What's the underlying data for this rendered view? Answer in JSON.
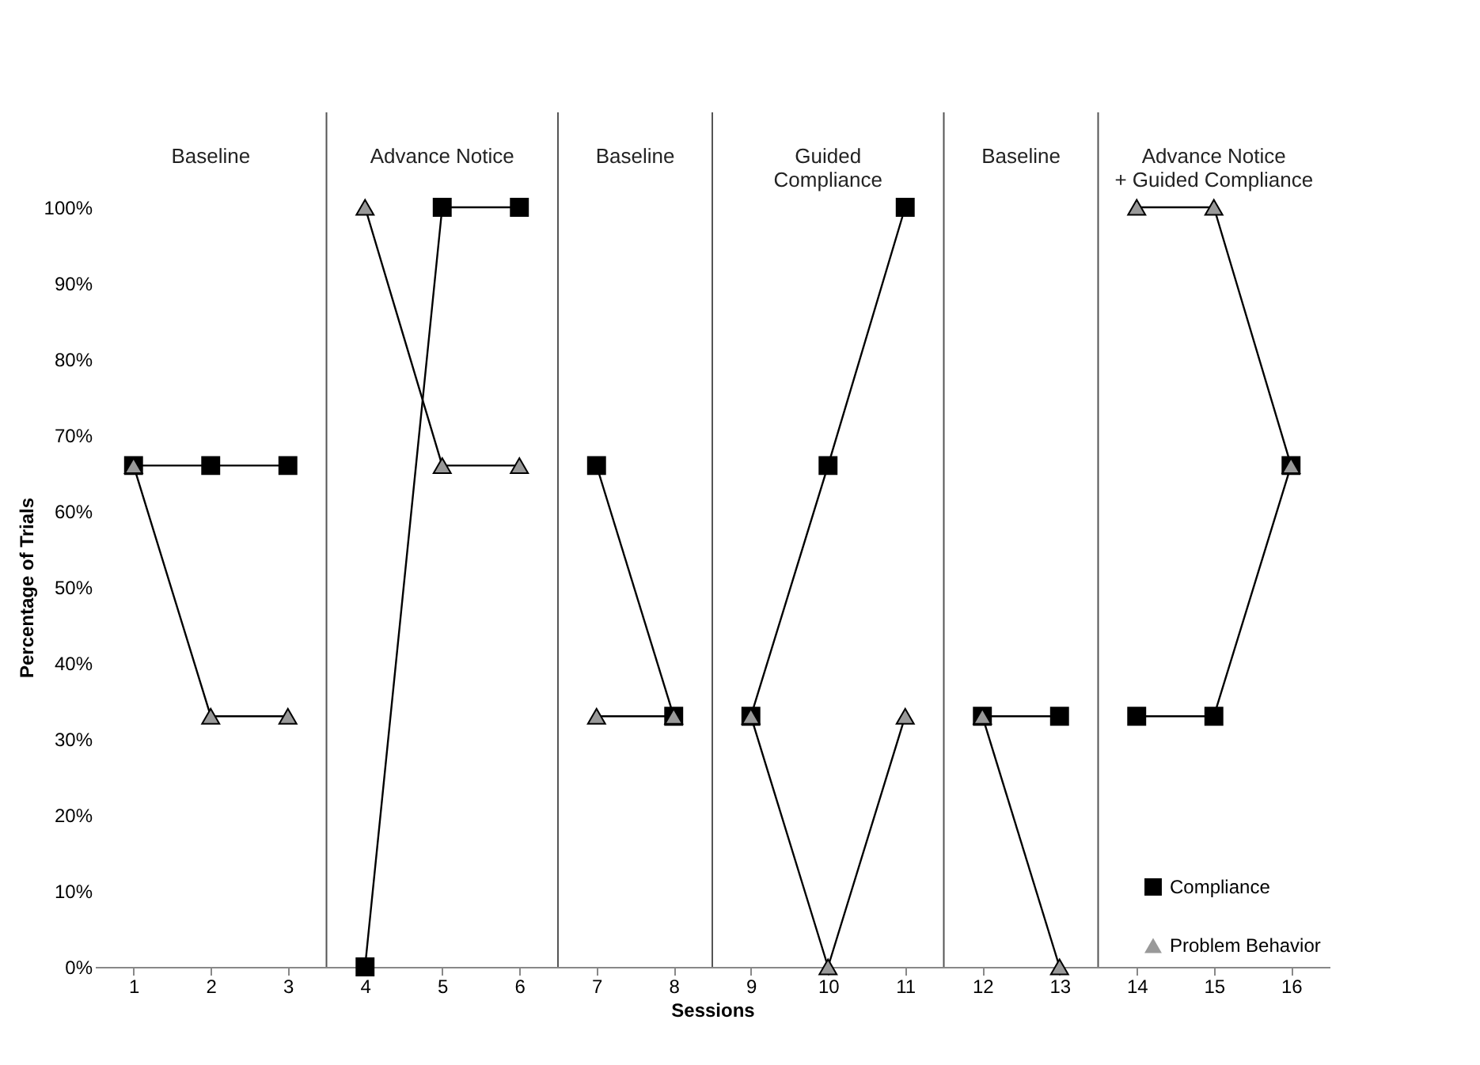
{
  "chart_data": {
    "type": "line",
    "xlabel": "Sessions",
    "ylabel": "Percentage of Trials",
    "x": [
      1,
      2,
      3,
      4,
      5,
      6,
      7,
      8,
      9,
      10,
      11,
      12,
      13,
      14,
      15,
      16
    ],
    "xlim": [
      0.5,
      16.5
    ],
    "xticks": [
      1,
      2,
      3,
      4,
      5,
      6,
      7,
      8,
      9,
      10,
      11,
      12,
      13,
      14,
      15,
      16
    ],
    "ylim": [
      0,
      100
    ],
    "yticks": [
      {
        "value": 0,
        "label": "0%"
      },
      {
        "value": 10,
        "label": "10%"
      },
      {
        "value": 20,
        "label": "20%"
      },
      {
        "value": 30,
        "label": "30%"
      },
      {
        "value": 40,
        "label": "40%"
      },
      {
        "value": 50,
        "label": "50%"
      },
      {
        "value": 60,
        "label": "60%"
      },
      {
        "value": 70,
        "label": "70%"
      },
      {
        "value": 80,
        "label": "80%"
      },
      {
        "value": 90,
        "label": "90%"
      },
      {
        "value": 100,
        "label": "100%"
      }
    ],
    "series": [
      {
        "name": "Compliance",
        "color": "#000000",
        "marker": "square",
        "values": [
          66,
          66,
          66,
          0,
          100,
          100,
          66,
          33,
          33,
          66,
          100,
          33,
          33,
          33,
          33,
          66
        ]
      },
      {
        "name": "Problem Behavior",
        "color": "#999999",
        "marker": "triangle",
        "values": [
          66,
          33,
          33,
          100,
          66,
          66,
          33,
          33,
          33,
          0,
          33,
          33,
          0,
          100,
          100,
          66
        ]
      }
    ],
    "ref_lines": [
      {
        "axis": "x",
        "value": 3.5,
        "color": "#555555"
      },
      {
        "axis": "x",
        "value": 6.5,
        "color": "#555555"
      },
      {
        "axis": "x",
        "value": 8.5,
        "color": "#555555"
      },
      {
        "axis": "x",
        "value": 11.5,
        "color": "#555555"
      },
      {
        "axis": "x",
        "value": 13.5,
        "color": "#555555"
      }
    ],
    "annotations": [
      "Baseline",
      "Advance Notice",
      "Baseline",
      "Guided\nCompliance",
      "Baseline",
      "Advance Notice\n+ Guided Compliance"
    ],
    "grid": false,
    "legend": "bottom right"
  }
}
